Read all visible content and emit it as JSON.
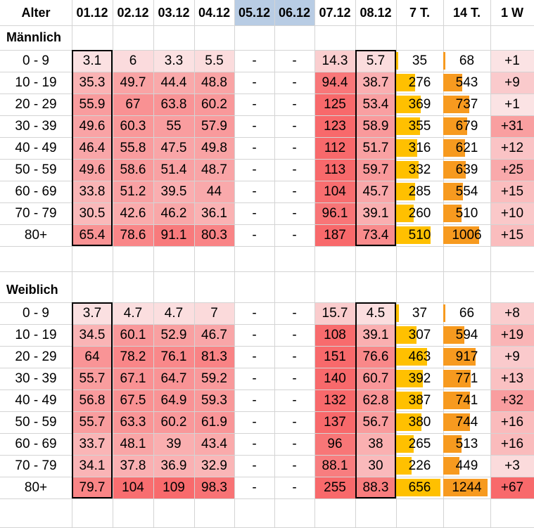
{
  "colors": {
    "heat_low": "#fbeaeb",
    "heat_high": "#f8696b",
    "weekend_header": "#b8cce4",
    "bar_7t": "#ffc000",
    "bar_14t": "#f79a1f",
    "grid": "#d4d4d4",
    "frame": "#000000"
  },
  "header": [
    "Alter",
    "01.12",
    "02.12",
    "03.12",
    "04.12",
    "05.12",
    "06.12",
    "07.12",
    "08.12",
    "7 T.",
    "14 T.",
    "1 W"
  ],
  "sections": [
    {
      "title": "Männlich",
      "rows": [
        {
          "label": "0 - 9",
          "days": [
            "3.1",
            "6",
            "3.3",
            "5.5",
            "-",
            "-",
            "14.3",
            "5.7"
          ],
          "t7": "35",
          "t14": "68",
          "w1": "+1"
        },
        {
          "label": "10 - 19",
          "days": [
            "35.3",
            "49.7",
            "44.4",
            "48.8",
            "-",
            "-",
            "94.4",
            "38.7"
          ],
          "t7": "276",
          "t14": "543",
          "w1": "+9"
        },
        {
          "label": "20 - 29",
          "days": [
            "55.9",
            "67",
            "63.8",
            "60.2",
            "-",
            "-",
            "125",
            "53.4"
          ],
          "t7": "369",
          "t14": "737",
          "w1": "+1"
        },
        {
          "label": "30 - 39",
          "days": [
            "49.6",
            "60.3",
            "55",
            "57.9",
            "-",
            "-",
            "123",
            "58.9"
          ],
          "t7": "355",
          "t14": "679",
          "w1": "+31"
        },
        {
          "label": "40 - 49",
          "days": [
            "46.4",
            "55.8",
            "47.5",
            "49.8",
            "-",
            "-",
            "112",
            "51.7"
          ],
          "t7": "316",
          "t14": "621",
          "w1": "+12"
        },
        {
          "label": "50 - 59",
          "days": [
            "49.6",
            "58.6",
            "51.4",
            "48.7",
            "-",
            "-",
            "113",
            "59.7"
          ],
          "t7": "332",
          "t14": "639",
          "w1": "+25"
        },
        {
          "label": "60 - 69",
          "days": [
            "33.8",
            "51.2",
            "39.5",
            "44",
            "-",
            "-",
            "104",
            "45.7"
          ],
          "t7": "285",
          "t14": "554",
          "w1": "+15"
        },
        {
          "label": "70 - 79",
          "days": [
            "30.5",
            "42.6",
            "46.2",
            "36.1",
            "-",
            "-",
            "96.1",
            "39.1"
          ],
          "t7": "260",
          "t14": "510",
          "w1": "+10"
        },
        {
          "label": "80+",
          "days": [
            "65.4",
            "78.6",
            "91.1",
            "80.3",
            "-",
            "-",
            "187",
            "73.4"
          ],
          "t7": "510",
          "t14": "1006",
          "w1": "+15"
        }
      ]
    },
    {
      "title": "Weiblich",
      "rows": [
        {
          "label": "0 - 9",
          "days": [
            "3.7",
            "4.7",
            "4.7",
            "7",
            "-",
            "-",
            "15.7",
            "4.5"
          ],
          "t7": "37",
          "t14": "66",
          "w1": "+8"
        },
        {
          "label": "10 - 19",
          "days": [
            "34.5",
            "60.1",
            "52.9",
            "46.7",
            "-",
            "-",
            "108",
            "39.1"
          ],
          "t7": "307",
          "t14": "594",
          "w1": "+19"
        },
        {
          "label": "20 - 29",
          "days": [
            "64",
            "78.2",
            "76.1",
            "81.3",
            "-",
            "-",
            "151",
            "76.6"
          ],
          "t7": "463",
          "t14": "917",
          "w1": "+9"
        },
        {
          "label": "30 - 39",
          "days": [
            "55.7",
            "67.1",
            "64.7",
            "59.2",
            "-",
            "-",
            "140",
            "60.7"
          ],
          "t7": "392",
          "t14": "771",
          "w1": "+13"
        },
        {
          "label": "40 - 49",
          "days": [
            "56.8",
            "67.5",
            "64.9",
            "59.3",
            "-",
            "-",
            "132",
            "62.8"
          ],
          "t7": "387",
          "t14": "741",
          "w1": "+32"
        },
        {
          "label": "50 - 59",
          "days": [
            "55.7",
            "63.3",
            "60.2",
            "61.9",
            "-",
            "-",
            "137",
            "56.7"
          ],
          "t7": "380",
          "t14": "744",
          "w1": "+16"
        },
        {
          "label": "60 - 69",
          "days": [
            "33.7",
            "48.1",
            "39",
            "43.4",
            "-",
            "-",
            "96",
            "38"
          ],
          "t7": "265",
          "t14": "513",
          "w1": "+16"
        },
        {
          "label": "70 - 79",
          "days": [
            "34.1",
            "37.8",
            "36.9",
            "32.9",
            "-",
            "-",
            "88.1",
            "30"
          ],
          "t7": "226",
          "t14": "449",
          "w1": "+3"
        },
        {
          "label": "80+",
          "days": [
            "79.7",
            "104",
            "109",
            "98.3",
            "-",
            "-",
            "255",
            "88.3"
          ],
          "t7": "656",
          "t14": "1244",
          "w1": "+67"
        }
      ]
    }
  ]
}
